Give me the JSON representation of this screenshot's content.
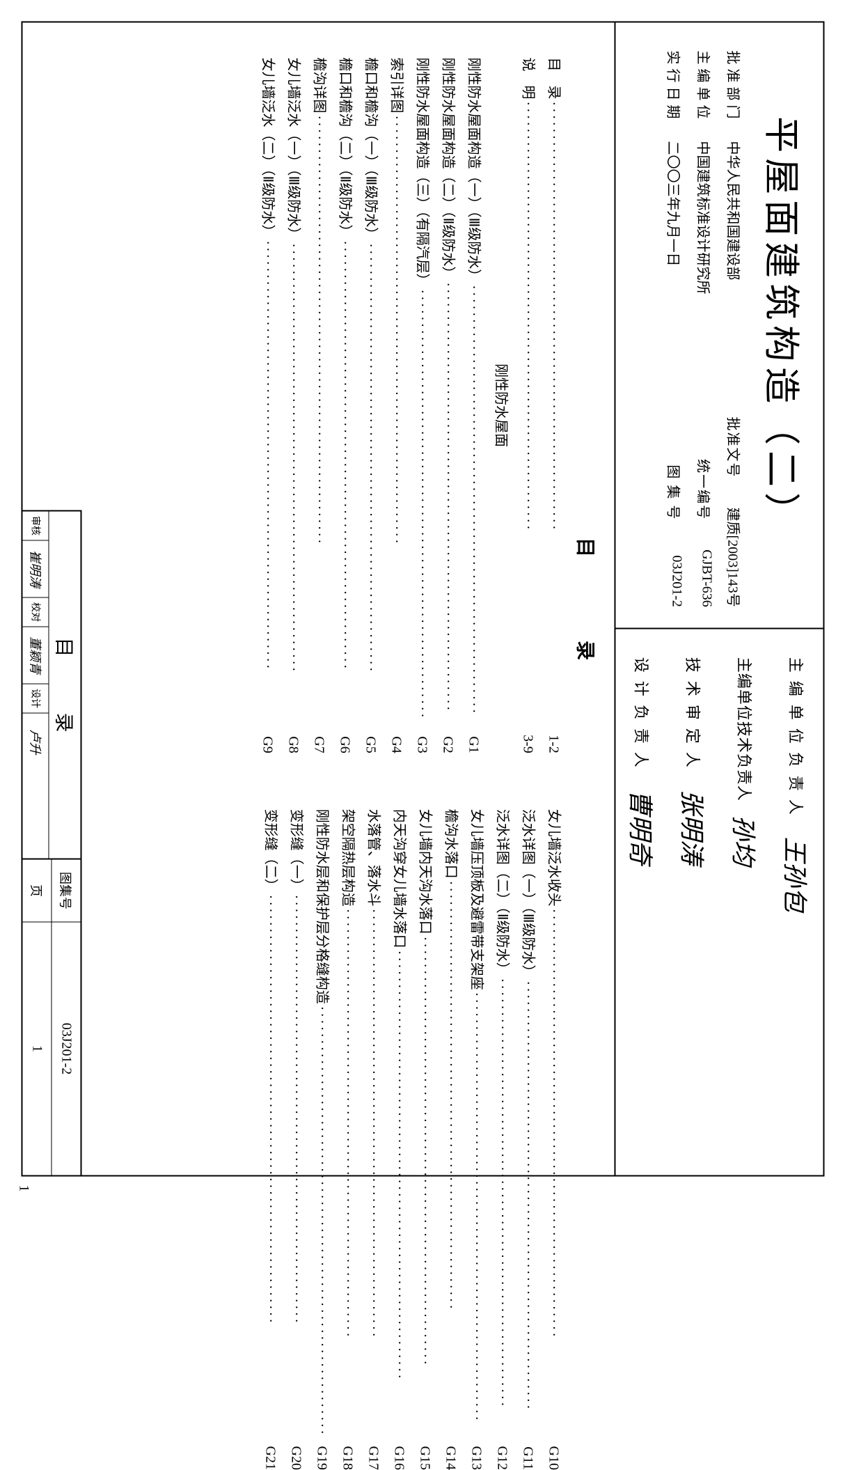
{
  "title": "平屋面建筑构造（二）",
  "info": {
    "approve_dept_label": "批准部门",
    "approve_dept": "中华人民共和国建设部",
    "approve_doc_label": "批准文号",
    "approve_doc": "建质[2003]143号",
    "editor_unit_label": "主编单位",
    "editor_unit": "中国建筑标准设计研究所",
    "unified_no_label": "统一编号",
    "unified_no": "GJBT-636",
    "effective_date_label": "实行日期",
    "effective_date": "二〇〇三年九月一日",
    "atlas_no_label": "图 集 号",
    "atlas_no": "03J201-2"
  },
  "signatures": {
    "unit_head_label": "主编单位负责人",
    "unit_head": "王孙包",
    "tech_head_label": "主编单位技术负责人",
    "tech_head": "孙均",
    "tech_review_label": "技术审定人",
    "tech_review": "张明涛",
    "design_head_label": "设计负责人",
    "design_head": "曹明奇"
  },
  "toc": {
    "title": "目录",
    "subheader": "刚性防水屋面",
    "left": [
      {
        "text": "目　录",
        "page": "1-2"
      },
      {
        "text": "说　明",
        "page": "3-9"
      },
      {
        "text": "刚性防水屋面构造（一）（Ⅲ级防水）",
        "page": "G1"
      },
      {
        "text": "刚性防水屋面构造（二）（Ⅱ级防水）",
        "page": "G2"
      },
      {
        "text": "刚性防水屋面构造（三）（有隔汽层）",
        "page": "G3"
      },
      {
        "text": "索引详图",
        "page": "G4"
      },
      {
        "text": "檐口和檐沟（一）（Ⅲ级防水）",
        "page": "G5"
      },
      {
        "text": "檐口和檐沟（二）（Ⅱ级防水）",
        "page": "G6"
      },
      {
        "text": "檐沟详图",
        "page": "G7"
      },
      {
        "text": "女儿墙泛水（一）（Ⅲ级防水）",
        "page": "G8"
      },
      {
        "text": "女儿墙泛水（二）（Ⅱ级防水）",
        "page": "G9"
      }
    ],
    "right": [
      {
        "text": "女儿墙泛水收头",
        "page": "G10"
      },
      {
        "text": "泛水详图（一）（Ⅲ级防水）",
        "page": "G11"
      },
      {
        "text": "泛水详图（二）（Ⅱ级防水）",
        "page": "G12"
      },
      {
        "text": "女儿墙压顶板及避雷带支架座",
        "page": "G13"
      },
      {
        "text": "檐沟水落口",
        "page": "G14"
      },
      {
        "text": "女儿墙内天沟水落口",
        "page": "G15"
      },
      {
        "text": "内天沟穿女儿墙水落口",
        "page": "G16"
      },
      {
        "text": "水落管、落水斗",
        "page": "G17"
      },
      {
        "text": "架空隔热层构造",
        "page": "G18"
      },
      {
        "text": "刚性防水层和保护层分格缝构造",
        "page": "G19"
      },
      {
        "text": "变形缝（一）",
        "page": "G20"
      },
      {
        "text": "变形缝（二）",
        "page": "G21"
      }
    ]
  },
  "bottom": {
    "title": "目录",
    "review_label": "审核",
    "review_sig": "崔明涛",
    "check_label": "校对",
    "check_sig": "董颖青",
    "design_label": "设计",
    "design_sig": "卢升",
    "atlas_label": "图集号",
    "atlas_val": "03J201-2",
    "page_label": "页",
    "page_val": "1"
  },
  "side_pagenum": "1",
  "dots": "································································"
}
